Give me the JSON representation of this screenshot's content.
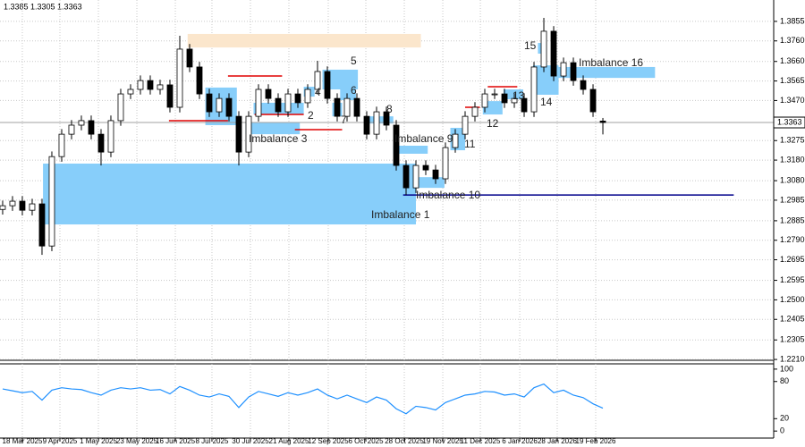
{
  "chart_data": [
    {
      "type": "candlestick",
      "header": "1.3385 1.3305 1.3363",
      "xlim": [
        -0.27,
        78.36
      ],
      "xticks": [
        {
          "value": 2,
          "label": "18 Mar 2025"
        },
        {
          "value": 5.82,
          "label": "9 Apr 2025"
        },
        {
          "value": 9.73,
          "label": "1 May 2025"
        },
        {
          "value": 13.64,
          "label": "23 May 2025"
        },
        {
          "value": 17.55,
          "label": "16 Jun 2025"
        },
        {
          "value": 21.27,
          "label": "8 Jul 2025"
        },
        {
          "value": 25.18,
          "label": "30 Jul 2025"
        },
        {
          "value": 29.09,
          "label": "21 Aug 2025"
        },
        {
          "value": 33.09,
          "label": "12 Sep 2025"
        },
        {
          "value": 36.91,
          "label": "6 Oct 2025"
        },
        {
          "value": 40.82,
          "label": "28 Oct 2025"
        },
        {
          "value": 44.73,
          "label": "19 Nov 2025"
        },
        {
          "value": 48.55,
          "label": "11 Dec 2025"
        },
        {
          "value": 52.55,
          "label": "6 Jan 2026"
        },
        {
          "value": 56.36,
          "label": "28 Jan 2026"
        },
        {
          "value": 60.27,
          "label": "19 Feb 2026"
        }
      ],
      "ylim": [
        1.2206,
        1.3959
      ],
      "yticks": [
        1.3855,
        {
          "value": 1.376,
          "label": "1.3760"
        },
        {
          "value": 1.366,
          "label": "1.3660"
        },
        1.3565,
        {
          "value": 1.347,
          "label": "1.3470"
        },
        1.3275,
        {
          "value": 1.318,
          "label": "1.3180"
        },
        {
          "value": 1.308,
          "label": "1.3080"
        },
        1.2985,
        1.2885,
        {
          "value": 1.279,
          "label": "1.2790"
        },
        1.2695,
        1.2595,
        {
          "value": 1.25,
          "label": "1.2500"
        },
        1.2405,
        1.2305,
        {
          "value": 1.221,
          "label": "1.2210"
        }
      ],
      "grid": true,
      "color": "#000000",
      "open": [
        1.294,
        1.2958,
        1.298,
        1.2936,
        1.2967,
        1.2762,
        1.3197,
        1.3306,
        1.335,
        1.3372,
        1.3306,
        1.3219,
        1.3372,
        1.3502,
        1.3524,
        1.3567,
        1.3524,
        1.3546,
        1.3437,
        1.372,
        1.3633,
        1.3502,
        1.3415,
        1.348,
        1.3393,
        1.3219,
        1.3393,
        1.3524,
        1.348,
        1.3415,
        1.3502,
        1.3459,
        1.3524,
        1.3611,
        1.348,
        1.3393,
        1.348,
        1.3393,
        1.3306,
        1.3415,
        1.335,
        1.3154,
        1.3045,
        1.3154,
        1.3132,
        1.3089,
        1.3241,
        1.3306,
        1.3393,
        1.3437,
        1.3502,
        1.3502,
        1.3459,
        1.348,
        1.3415,
        1.3633,
        1.3807,
        1.3589,
        1.3654,
        1.3567,
        1.3524,
        1.337
      ],
      "high": [
        1.2983,
        1.3005,
        1.3005,
        1.2992,
        1.2992,
        1.3222,
        1.3331,
        1.3375,
        1.3397,
        1.3397,
        1.3331,
        1.3397,
        1.3527,
        1.3549,
        1.3592,
        1.3592,
        1.3571,
        1.3571,
        1.3785,
        1.3745,
        1.3658,
        1.3527,
        1.3505,
        1.3505,
        1.3418,
        1.3418,
        1.3549,
        1.3549,
        1.3505,
        1.3527,
        1.3527,
        1.3549,
        1.3663,
        1.3636,
        1.3505,
        1.3505,
        1.3505,
        1.3418,
        1.344,
        1.344,
        1.3375,
        1.3179,
        1.3179,
        1.3179,
        1.3157,
        1.3266,
        1.3331,
        1.3418,
        1.3462,
        1.3527,
        1.3527,
        1.3527,
        1.3505,
        1.3505,
        1.3658,
        1.3872,
        1.3832,
        1.3679,
        1.3679,
        1.3592,
        1.3549,
        1.3385
      ],
      "low": [
        1.2915,
        1.2933,
        1.2911,
        1.2911,
        1.2719,
        1.2737,
        1.3172,
        1.3281,
        1.3325,
        1.3281,
        1.3154,
        1.3194,
        1.3347,
        1.3477,
        1.3499,
        1.3499,
        1.3499,
        1.3412,
        1.3412,
        1.3608,
        1.3477,
        1.339,
        1.339,
        1.3368,
        1.3154,
        1.3194,
        1.3368,
        1.3455,
        1.339,
        1.339,
        1.3434,
        1.3434,
        1.3499,
        1.3455,
        1.3368,
        1.3368,
        1.3368,
        1.3281,
        1.3281,
        1.3325,
        1.3129,
        1.301,
        1.302,
        1.3107,
        1.3064,
        1.3064,
        1.3216,
        1.3281,
        1.3368,
        1.3412,
        1.3477,
        1.3434,
        1.3434,
        1.339,
        1.339,
        1.3608,
        1.3564,
        1.3564,
        1.3542,
        1.3499,
        1.339,
        1.3305
      ],
      "close": [
        1.2958,
        1.298,
        1.2936,
        1.2967,
        1.2762,
        1.3197,
        1.3306,
        1.335,
        1.3372,
        1.3306,
        1.3219,
        1.3372,
        1.3502,
        1.3524,
        1.3567,
        1.3524,
        1.3546,
        1.3437,
        1.372,
        1.3633,
        1.3502,
        1.3415,
        1.348,
        1.3393,
        1.3219,
        1.3393,
        1.3524,
        1.348,
        1.3415,
        1.3502,
        1.3459,
        1.3524,
        1.3611,
        1.348,
        1.3393,
        1.348,
        1.3393,
        1.3306,
        1.3415,
        1.335,
        1.3154,
        1.3045,
        1.3154,
        1.3132,
        1.3089,
        1.3241,
        1.3306,
        1.3393,
        1.3437,
        1.3502,
        1.3502,
        1.3459,
        1.348,
        1.3415,
        1.3633,
        1.3807,
        1.3589,
        1.3654,
        1.3567,
        1.3524,
        1.3415,
        1.3363
      ],
      "last": 1.3363,
      "zones": [
        {
          "label": "Imbalance 1",
          "x": [
            4.1,
            42.0
          ],
          "y": [
            1.2867,
            1.3163
          ],
          "color": "#87cefa"
        },
        {
          "x": [
            18.8,
            42.5
          ],
          "y": [
            1.3728,
            1.3794
          ],
          "color": "#fbe6cc"
        },
        {
          "label": "Imbalance 3",
          "x": [
            24.7,
            30.2
          ],
          "y": [
            1.3306,
            1.3363
          ],
          "color": "#87cefa"
        },
        {
          "label": "2",
          "x": [
            25.5,
            30.6
          ],
          "y": [
            1.3402,
            1.3459
          ],
          "color": "#87cefa"
        },
        {
          "label": "4",
          "x": [
            30.6,
            31.7
          ],
          "y": [
            1.3489,
            1.3537
          ],
          "color": "#87cefa"
        },
        {
          "label": "5",
          "x": [
            32.5,
            36.1
          ],
          "y": [
            1.3524,
            1.362
          ],
          "color": "#87cefa"
        },
        {
          "label": "6",
          "x": [
            34.3,
            35.9
          ],
          "y": [
            1.3472,
            1.3524
          ],
          "color": "#87cefa"
        },
        {
          "label": "7",
          "x": [
            33.5,
            34.5
          ],
          "y": [
            1.3393,
            1.3459
          ],
          "color": "#87cefa"
        },
        {
          "label": "8",
          "x": [
            36.8,
            39.7
          ],
          "y": [
            1.3358,
            1.3393
          ],
          "color": "#87cefa"
        },
        {
          "label": "Imbalance 9",
          "x": [
            39.7,
            43.2
          ],
          "y": [
            1.3211,
            1.325
          ],
          "color": "#87cefa"
        },
        {
          "label": "Imbalance 10",
          "x": [
            41.8,
            44.9
          ],
          "y": [
            1.3045,
            1.3097
          ],
          "color": "#87cefa"
        },
        {
          "label": "11",
          "x": [
            45.5,
            47.0
          ],
          "y": [
            1.3228,
            1.3337
          ],
          "color": "#87cefa"
        },
        {
          "label": "12",
          "x": [
            48.8,
            50.8
          ],
          "y": [
            1.3402,
            1.3467
          ],
          "color": "#87cefa"
        },
        {
          "label": "13",
          "x": [
            50.9,
            52.9
          ],
          "y": [
            1.3476,
            1.3524
          ],
          "color": "#87cefa"
        },
        {
          "label": "14",
          "x": [
            53.9,
            56.5
          ],
          "y": [
            1.3498,
            1.3641
          ],
          "color": "#87cefa"
        },
        {
          "label": "15",
          "x": [
            54.4,
            55.2
          ],
          "y": [
            1.3698,
            1.375
          ],
          "color": "#87cefa"
        },
        {
          "label": "Imbalance 16",
          "x": [
            56.5,
            66.3
          ],
          "y": [
            1.358,
            1.3633
          ],
          "color": "#87cefa"
        },
        {
          "x": [
            20.6,
            23.8
          ],
          "y": [
            1.335,
            1.3533
          ],
          "color": "#87cefa"
        }
      ],
      "levels": [
        {
          "x": [
            40.7,
            74.3
          ],
          "value": 1.301,
          "color": "#00008b"
        },
        {
          "x": [
            16.9,
            22.9
          ],
          "value": 1.3372,
          "color": "#e00000"
        },
        {
          "x": [
            22.9,
            28.4
          ],
          "value": 1.3589,
          "color": "#e00000"
        },
        {
          "x": [
            25.6,
            30.6
          ],
          "value": 1.3402,
          "color": "#e00000"
        },
        {
          "x": [
            29.7,
            34.5
          ],
          "value": 1.3328,
          "color": "#e00000"
        },
        {
          "x": [
            47.0,
            48.5
          ],
          "value": 1.3437,
          "color": "#e00000"
        },
        {
          "x": [
            49.3,
            52.3
          ],
          "value": 1.3537,
          "color": "#e00000"
        }
      ]
    },
    {
      "type": "line",
      "color": "#1e90ff",
      "ylim": [
        -11.3,
        108.5
      ],
      "yticks": [
        100,
        80,
        20,
        0
      ],
      "values": [
        68,
        65,
        62,
        64,
        50,
        66,
        70,
        68,
        67,
        62,
        58,
        66,
        70,
        68,
        70,
        66,
        67,
        60,
        72,
        66,
        58,
        55,
        60,
        56,
        38,
        55,
        64,
        60,
        56,
        62,
        58,
        62,
        68,
        58,
        52,
        58,
        52,
        46,
        55,
        50,
        36,
        28,
        40,
        38,
        34,
        46,
        52,
        58,
        60,
        64,
        63,
        58,
        60,
        55,
        70,
        76,
        62,
        66,
        58,
        54,
        44,
        37
      ]
    }
  ]
}
